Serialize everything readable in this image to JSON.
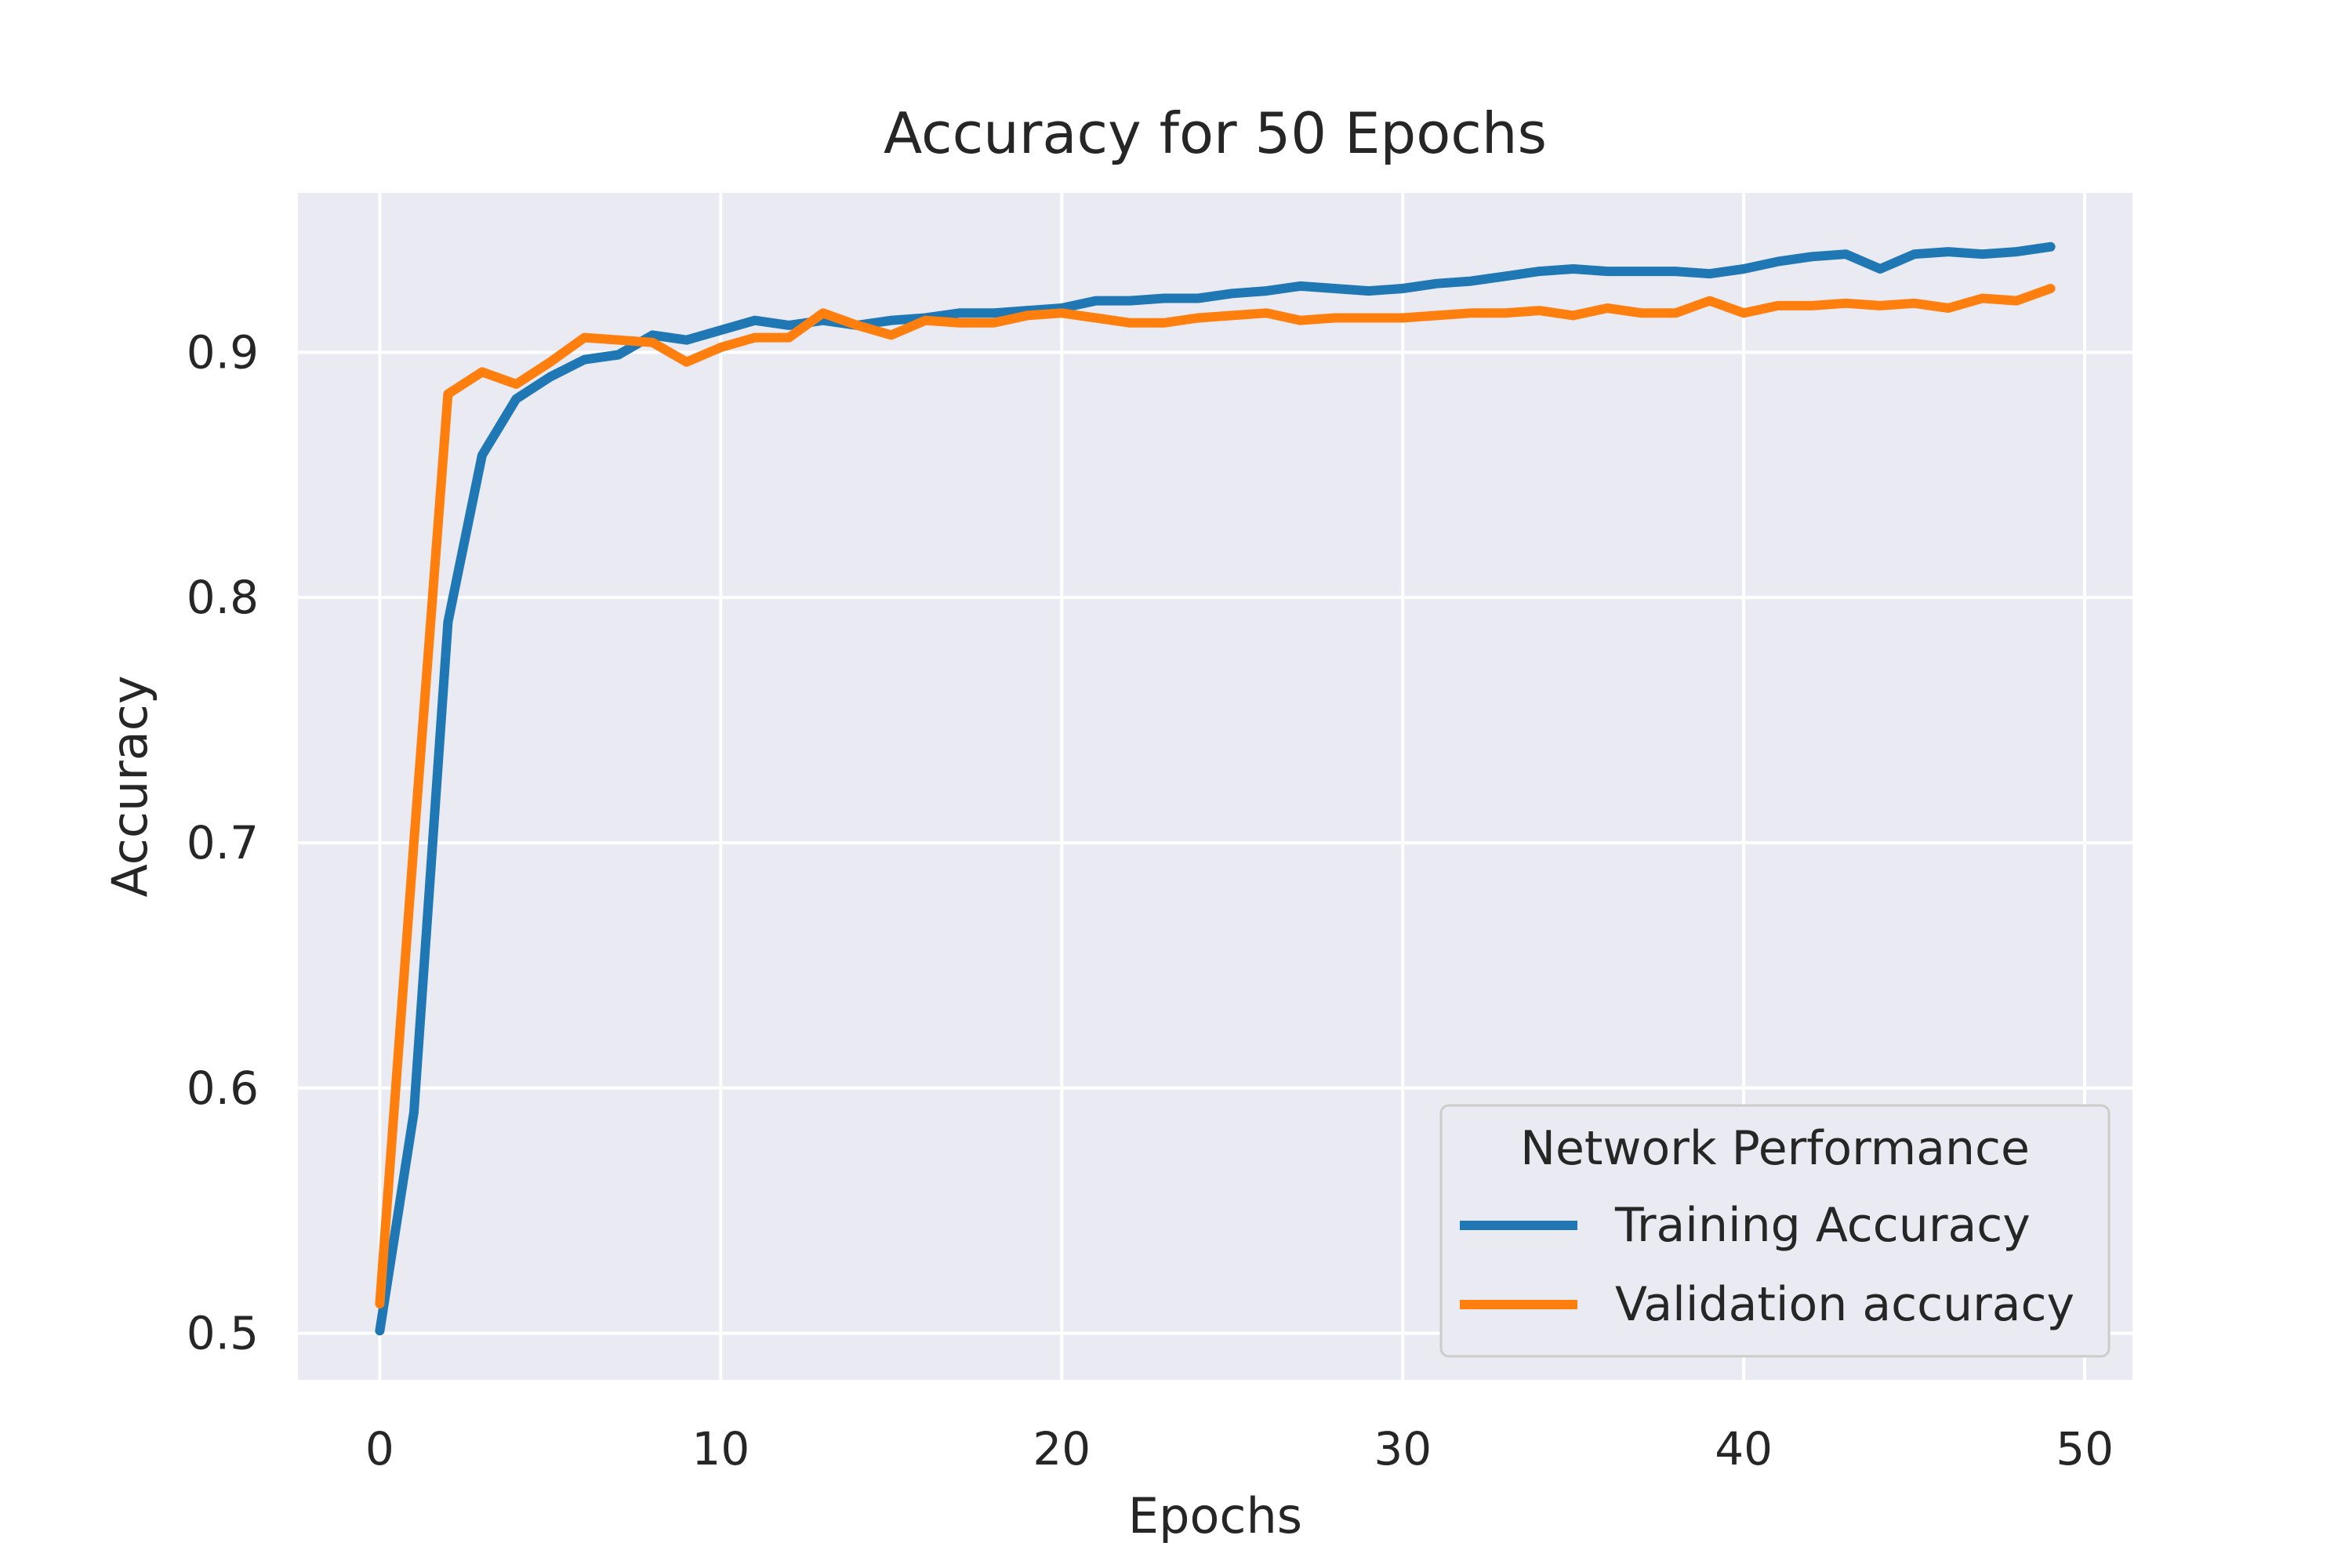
{
  "chart_data": {
    "type": "line",
    "title": "Accuracy for 50 Epochs",
    "xlabel": "Epochs",
    "ylabel": "Accuracy",
    "xlim": [
      -2.4,
      51.4
    ],
    "ylim": [
      0.481,
      0.965
    ],
    "xticks": [
      0,
      10,
      20,
      30,
      40,
      50
    ],
    "yticks": [
      0.5,
      0.6,
      0.7,
      0.8,
      0.9
    ],
    "ytick_labels": [
      "0.5",
      "0.6",
      "0.7",
      "0.8",
      "0.9"
    ],
    "grid": true,
    "legend": {
      "title": "Network Performance",
      "placement": "lower-right"
    },
    "x": [
      0,
      1,
      2,
      3,
      4,
      5,
      6,
      7,
      8,
      9,
      10,
      11,
      12,
      13,
      14,
      15,
      16,
      17,
      18,
      19,
      20,
      21,
      22,
      23,
      24,
      25,
      26,
      27,
      28,
      29,
      30,
      31,
      32,
      33,
      34,
      35,
      36,
      37,
      38,
      39,
      40,
      41,
      42,
      43,
      44,
      45,
      46,
      47,
      48,
      49
    ],
    "series": [
      {
        "name": "Training Accuracy",
        "color": "#1f77b4",
        "values": [
          0.501,
          0.59,
          0.79,
          0.858,
          0.881,
          0.89,
          0.897,
          0.899,
          0.907,
          0.905,
          0.909,
          0.913,
          0.911,
          0.913,
          0.911,
          0.913,
          0.914,
          0.916,
          0.916,
          0.917,
          0.918,
          0.921,
          0.921,
          0.922,
          0.922,
          0.924,
          0.925,
          0.927,
          0.926,
          0.925,
          0.926,
          0.928,
          0.929,
          0.931,
          0.933,
          0.934,
          0.933,
          0.933,
          0.933,
          0.932,
          0.934,
          0.937,
          0.939,
          0.94,
          0.934,
          0.94,
          0.941,
          0.94,
          0.941,
          0.943
        ]
      },
      {
        "name": "Validation accuracy",
        "color": "#ff7f0e",
        "values": [
          0.512,
          0.7,
          0.883,
          0.892,
          0.887,
          0.896,
          0.906,
          0.905,
          0.904,
          0.896,
          0.902,
          0.906,
          0.906,
          0.916,
          0.911,
          0.907,
          0.913,
          0.912,
          0.912,
          0.915,
          0.916,
          0.914,
          0.912,
          0.912,
          0.914,
          0.915,
          0.916,
          0.913,
          0.914,
          0.914,
          0.914,
          0.915,
          0.916,
          0.916,
          0.917,
          0.915,
          0.918,
          0.916,
          0.916,
          0.921,
          0.916,
          0.919,
          0.919,
          0.92,
          0.919,
          0.92,
          0.918,
          0.922,
          0.921,
          0.926
        ]
      }
    ]
  }
}
